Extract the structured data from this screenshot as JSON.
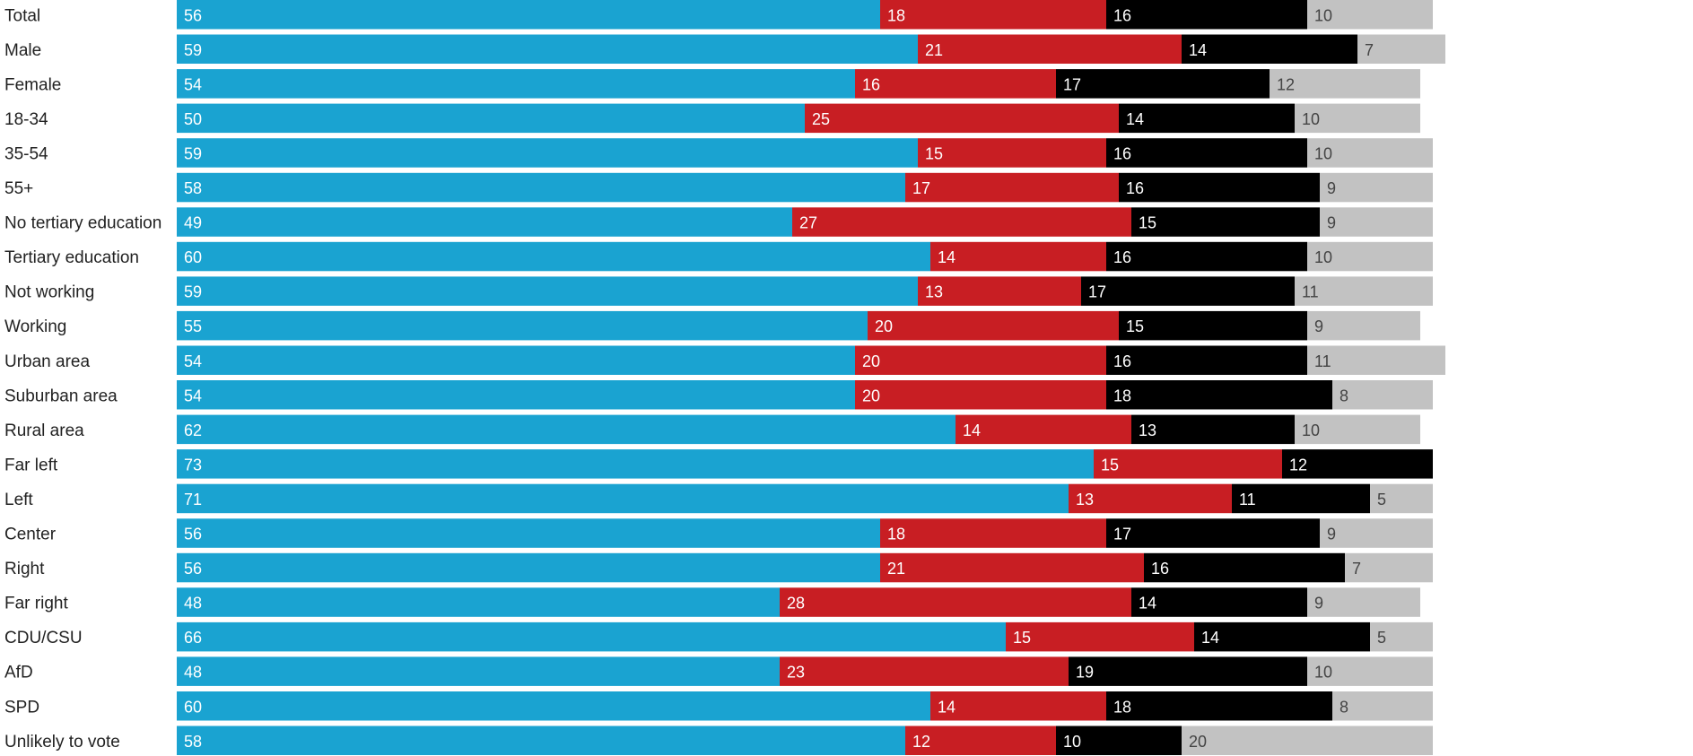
{
  "chart_data": {
    "type": "bar",
    "orientation": "horizontal",
    "stacked": true,
    "grid": false,
    "legend": "none",
    "categories": [
      "Total",
      "Male",
      "Female",
      "18-34",
      "35-54",
      "55+",
      "No tertiary education",
      "Tertiary education",
      "Not working",
      "Working",
      "Urban area",
      "Suburban area",
      "Rural area",
      "Far left",
      "Left",
      "Center",
      "Right",
      "Far right",
      "CDU/CSU",
      "AfD",
      "SPD",
      "Unlikely to vote"
    ],
    "series": [
      {
        "color": "#1aa3d1",
        "label_color": "#ffffff",
        "values": [
          56,
          59,
          54,
          50,
          59,
          58,
          49,
          60,
          59,
          55,
          54,
          54,
          62,
          73,
          71,
          56,
          56,
          48,
          66,
          48,
          60,
          58
        ]
      },
      {
        "color": "#c81e23",
        "label_color": "#ffffff",
        "values": [
          18,
          21,
          16,
          25,
          15,
          17,
          27,
          14,
          13,
          20,
          20,
          20,
          14,
          15,
          13,
          18,
          21,
          28,
          15,
          23,
          14,
          12
        ]
      },
      {
        "color": "#000000",
        "label_color": "#ffffff",
        "values": [
          16,
          14,
          17,
          14,
          16,
          16,
          15,
          16,
          17,
          15,
          16,
          18,
          13,
          12,
          11,
          17,
          16,
          14,
          14,
          19,
          18,
          10
        ]
      },
      {
        "color": "#c2c2c2",
        "label_color": "#444444",
        "values": [
          10,
          7,
          12,
          10,
          10,
          9,
          9,
          10,
          11,
          9,
          11,
          8,
          10,
          null,
          5,
          9,
          7,
          9,
          5,
          10,
          8,
          20
        ]
      }
    ]
  }
}
